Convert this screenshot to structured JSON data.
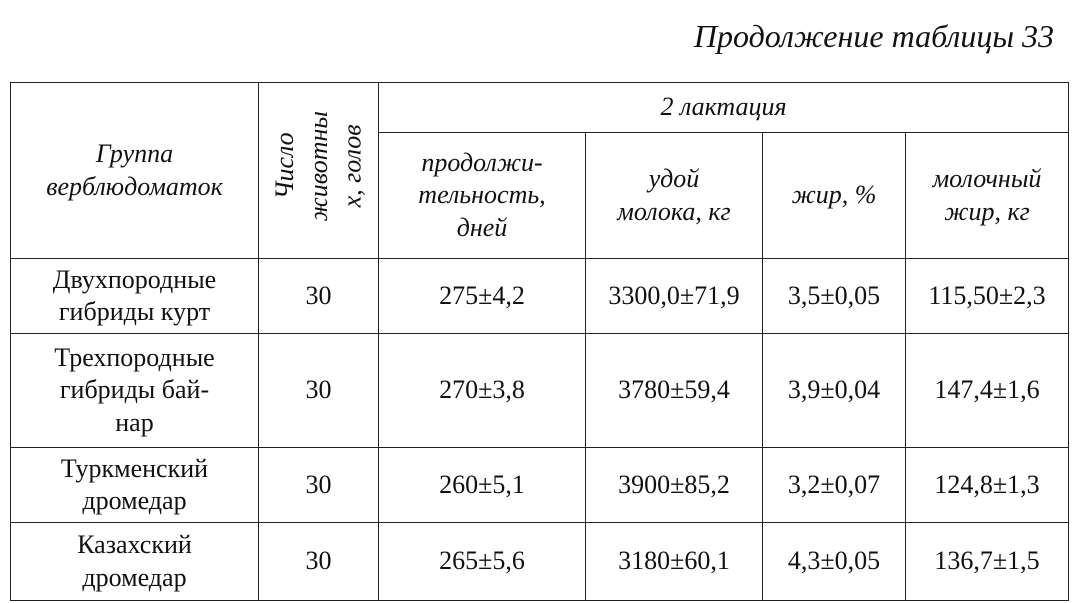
{
  "caption": "Продолжение таблицы 33",
  "header": {
    "group": [
      "Группа",
      "верблюдоматок"
    ],
    "count": [
      "Число",
      "животны",
      "х, голов"
    ],
    "lactation": "2 лактация",
    "columns": [
      [
        "продолжи-",
        "тельность,",
        "дней"
      ],
      [
        "удой",
        "молока, кг"
      ],
      [
        "жир, %"
      ],
      [
        "молочный",
        "жир, кг"
      ]
    ]
  },
  "rows": [
    {
      "name": [
        "Двухпородные",
        "гибриды курт"
      ],
      "cells": [
        "30",
        "275±4,2",
        "3300,0±71,9",
        "3,5±0,05",
        "115,50±2,3"
      ]
    },
    {
      "name": [
        "Трехпородные",
        "гибриды бай-",
        "нар"
      ],
      "cells": [
        "30",
        "270±3,8",
        "3780±59,4",
        "3,9±0,04",
        "147,4±1,6"
      ]
    },
    {
      "name": [
        "Туркменский",
        "дромедар"
      ],
      "cells": [
        "30",
        "260±5,1",
        "3900±85,2",
        "3,2±0,07",
        "124,8±1,3"
      ]
    },
    {
      "name": [
        "Казахский",
        "дромедар"
      ],
      "cells": [
        "30",
        "265±5,6",
        "3180±60,1",
        "4,3±0,05",
        "136,7±1,5"
      ]
    }
  ]
}
